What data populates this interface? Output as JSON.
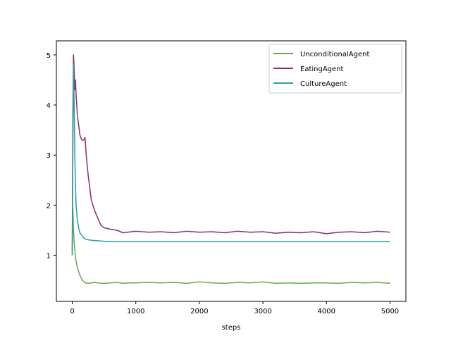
{
  "chart_data": {
    "type": "line",
    "xlabel": "steps",
    "ylabel": "",
    "xlim": [
      -250,
      5250
    ],
    "ylim": [
      0.08,
      5.28
    ],
    "xticks": [
      0,
      1000,
      2000,
      3000,
      4000,
      5000
    ],
    "yticks": [
      1,
      2,
      3,
      4,
      5
    ],
    "grid": false,
    "legend_position": "top-right",
    "series": [
      {
        "name": "UnconditionalAgent",
        "color": "#6aa84f",
        "x": [
          0,
          10,
          20,
          30,
          50,
          80,
          120,
          160,
          200,
          250,
          300,
          350,
          400,
          500,
          600,
          700,
          800,
          900,
          1000,
          1200,
          1400,
          1600,
          1800,
          2000,
          2200,
          2400,
          2600,
          2800,
          3000,
          3200,
          3400,
          3600,
          3800,
          4000,
          4200,
          4400,
          4600,
          4800,
          5000
        ],
        "values": [
          1.0,
          1.95,
          1.5,
          1.25,
          0.95,
          0.75,
          0.6,
          0.5,
          0.45,
          0.44,
          0.45,
          0.46,
          0.45,
          0.44,
          0.45,
          0.46,
          0.44,
          0.45,
          0.45,
          0.46,
          0.45,
          0.46,
          0.44,
          0.47,
          0.45,
          0.44,
          0.46,
          0.45,
          0.47,
          0.44,
          0.45,
          0.44,
          0.45,
          0.45,
          0.44,
          0.46,
          0.45,
          0.46,
          0.44
        ]
      },
      {
        "name": "EatingAgent",
        "color": "#8b2f6e",
        "x": [
          0,
          10,
          20,
          30,
          40,
          50,
          60,
          80,
          100,
          120,
          150,
          180,
          200,
          220,
          250,
          280,
          300,
          350,
          400,
          450,
          500,
          600,
          700,
          800,
          1000,
          1200,
          1400,
          1600,
          1800,
          2000,
          2200,
          2400,
          2600,
          2800,
          3000,
          3200,
          3400,
          3600,
          3800,
          4000,
          4200,
          4400,
          4600,
          4800,
          5000
        ],
        "values": [
          1.1,
          3.8,
          5.0,
          4.7,
          4.3,
          4.5,
          4.2,
          3.8,
          3.6,
          3.4,
          3.3,
          3.3,
          3.35,
          3.0,
          2.6,
          2.3,
          2.1,
          1.9,
          1.75,
          1.6,
          1.55,
          1.52,
          1.5,
          1.45,
          1.48,
          1.46,
          1.47,
          1.45,
          1.48,
          1.46,
          1.47,
          1.45,
          1.48,
          1.46,
          1.47,
          1.44,
          1.46,
          1.45,
          1.47,
          1.43,
          1.46,
          1.47,
          1.45,
          1.48,
          1.46
        ]
      },
      {
        "name": "CultureAgent",
        "color": "#2aa0a0",
        "x": [
          0,
          10,
          20,
          30,
          40,
          50,
          60,
          80,
          100,
          120,
          150,
          180,
          200,
          250,
          300,
          400,
          500,
          700,
          1000,
          1500,
          2000,
          2500,
          3000,
          3500,
          4000,
          4500,
          5000
        ],
        "values": [
          1.0,
          3.0,
          4.8,
          4.0,
          3.0,
          2.4,
          2.0,
          1.7,
          1.55,
          1.45,
          1.4,
          1.35,
          1.33,
          1.31,
          1.3,
          1.29,
          1.28,
          1.27,
          1.27,
          1.27,
          1.27,
          1.27,
          1.27,
          1.27,
          1.27,
          1.27,
          1.27
        ]
      }
    ]
  }
}
